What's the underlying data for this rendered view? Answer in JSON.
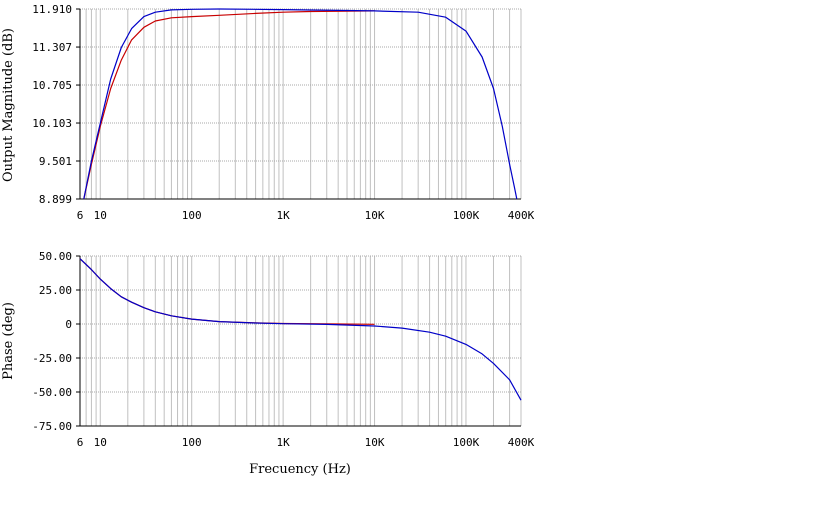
{
  "chart_data": [
    {
      "type": "line",
      "xscale": "log",
      "xlim": [
        6,
        400000
      ],
      "ylim": [
        8.899,
        11.91
      ],
      "ylabel": "Output Magnitude (dB)",
      "xlabel": "",
      "x_tick_labels": [
        "6",
        "10",
        "100",
        "1K",
        "10K",
        "100K",
        "400K"
      ],
      "x_tick_values": [
        6,
        10,
        100,
        1000,
        10000,
        100000,
        400000
      ],
      "y_tick_labels": [
        "11.910",
        "11.307",
        "10.705",
        "10.103",
        "9.501",
        "8.899"
      ],
      "y_tick_values": [
        11.91,
        11.307,
        10.705,
        10.103,
        9.501,
        8.899
      ],
      "grid": true,
      "series": [
        {
          "color": "#0000c8",
          "x": [
            6.6,
            8,
            10,
            13,
            17,
            22,
            30,
            40,
            60,
            100,
            200,
            1000,
            10000,
            30000,
            60000,
            100000,
            150000,
            200000,
            250000,
            300000,
            340000,
            360000
          ],
          "y": [
            8.899,
            9.5,
            10.1,
            10.8,
            11.3,
            11.6,
            11.79,
            11.86,
            11.895,
            11.905,
            11.91,
            11.9,
            11.88,
            11.86,
            11.78,
            11.56,
            11.15,
            10.65,
            10.05,
            9.45,
            9.08,
            8.899
          ]
        },
        {
          "color": "#c80000",
          "x": [
            6.6,
            8,
            10,
            13,
            17,
            22,
            30,
            40,
            60,
            100,
            200,
            500,
            1000,
            2000,
            5000,
            10000
          ],
          "y": [
            8.899,
            9.45,
            10.05,
            10.65,
            11.1,
            11.42,
            11.62,
            11.72,
            11.77,
            11.79,
            11.81,
            11.84,
            11.86,
            11.87,
            11.875,
            11.88
          ]
        }
      ]
    },
    {
      "type": "line",
      "xscale": "log",
      "xlim": [
        6,
        400000
      ],
      "ylim": [
        -75,
        50
      ],
      "ylabel": "Phase (deg)",
      "xlabel": "Frecuency (Hz)",
      "x_tick_labels": [
        "6",
        "10",
        "100",
        "1K",
        "10K",
        "100K",
        "400K"
      ],
      "x_tick_values": [
        6,
        10,
        100,
        1000,
        10000,
        100000,
        400000
      ],
      "y_tick_labels": [
        "50.00",
        "25.00",
        "0",
        "-25.00",
        "-50.00",
        "-75.00"
      ],
      "y_tick_values": [
        50,
        25,
        0,
        -25,
        -50,
        -75
      ],
      "grid": true,
      "series": [
        {
          "color": "#0000c8",
          "x": [
            6,
            8,
            10,
            13,
            17,
            22,
            30,
            40,
            60,
            100,
            200,
            500,
            1000,
            3000,
            10000,
            20000,
            40000,
            60000,
            100000,
            150000,
            200000,
            300000,
            400000
          ],
          "y": [
            48,
            40,
            33,
            26,
            20,
            16,
            12,
            9,
            6,
            3.6,
            1.8,
            0.7,
            0.2,
            -0.3,
            -1.5,
            -3,
            -6,
            -9,
            -15,
            -22,
            -29,
            -41,
            -56
          ]
        },
        {
          "color": "#c80000",
          "x": [
            6,
            8,
            10,
            13,
            17,
            22,
            30,
            40,
            60,
            100,
            200,
            500,
            1000,
            3000,
            10000
          ],
          "y": [
            48,
            40,
            33,
            26,
            20,
            16,
            12,
            9,
            6,
            3.6,
            1.8,
            0.8,
            0.4,
            0.1,
            -0.2
          ]
        }
      ]
    }
  ]
}
